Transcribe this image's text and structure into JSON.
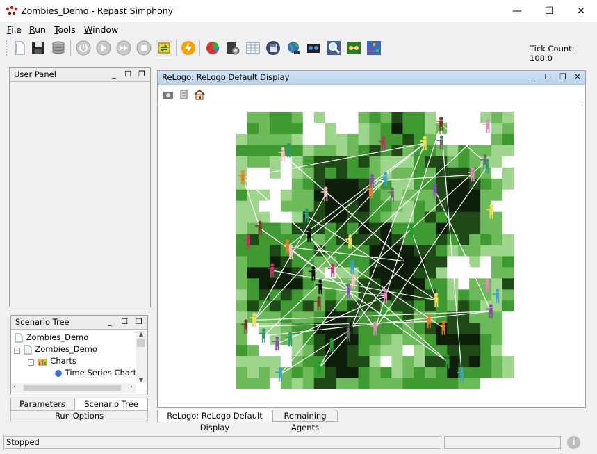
{
  "window": {
    "title": "Zombies_Demo - Repast Simphony",
    "controls": {
      "minimize": "—",
      "maximize": "☐",
      "close": "✕"
    }
  },
  "menu": {
    "items": [
      {
        "label": "File",
        "mnemonic": "F",
        "rest": "ile"
      },
      {
        "label": "Run",
        "mnemonic": "R",
        "rest": "un"
      },
      {
        "label": "Tools",
        "mnemonic": "T",
        "rest": "ools"
      },
      {
        "label": "Window",
        "mnemonic": "W",
        "rest": "indow"
      }
    ]
  },
  "toolbar": {
    "buttons": [
      "load-scenario-icon",
      "save-icon",
      "database-icon",
      "power-icon",
      "play-icon",
      "fast-forward-icon",
      "stop-icon",
      "reset-icon",
      "lightning-icon",
      "chart-icon",
      "gear-icon",
      "spreadsheet-icon",
      "calculator-icon",
      "globe-icon",
      "film-icon",
      "magnifier-icon",
      "network-icon",
      "agents-icon"
    ],
    "tick_count": "Tick Count: 108.0"
  },
  "user_panel": {
    "title": "User Panel"
  },
  "scenario_tree": {
    "title": "Scenario Tree",
    "nodes": [
      "Zombies_Demo",
      "Zombies_Demo",
      "Charts",
      "Time Series Chart"
    ],
    "tabs": [
      "Parameters",
      "Scenario Tree"
    ],
    "run_options": "Run Options"
  },
  "display": {
    "title": "ReLogo: ReLogo Default Display",
    "tools": [
      "camera-icon",
      "export-icon",
      "home-icon"
    ],
    "tabs": [
      "ReLogo: ReLogo Default Display",
      "Remaining Agents"
    ]
  },
  "status": {
    "text": "Stopped"
  },
  "colors": {
    "dark_green": "#0d1f0a",
    "mid_green": "#3f9a31",
    "light_green": "#9ed58c",
    "selection_blue": "#b9d3ec"
  }
}
